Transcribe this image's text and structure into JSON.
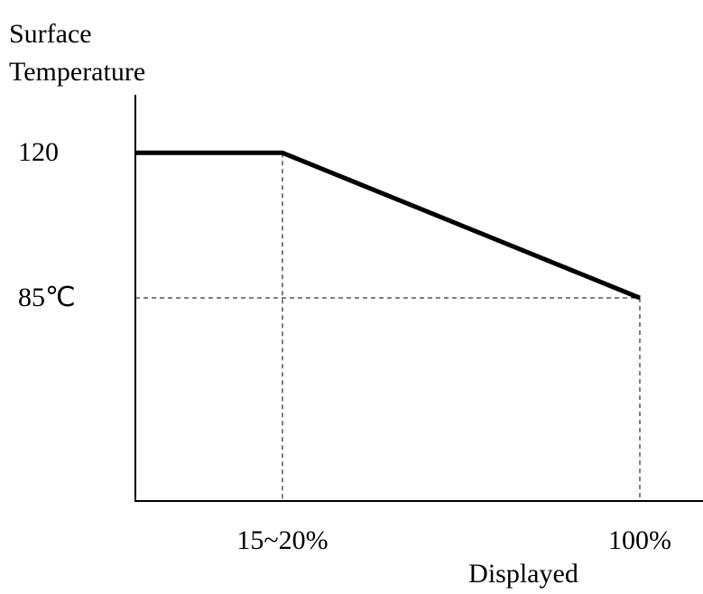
{
  "chart_data": {
    "type": "line",
    "y_axis_label": [
      "Surface",
      "Temperature"
    ],
    "x_axis_label": "Displayed",
    "categories": [
      null,
      "15~20%",
      "100%"
    ],
    "series": [
      {
        "color": "#000000",
        "values": [
          120,
          120,
          85
        ]
      }
    ],
    "ylim": [
      36,
      134
    ],
    "yticks": [
      120,
      {
        "value": 85,
        "label": "85℃"
      }
    ]
  }
}
